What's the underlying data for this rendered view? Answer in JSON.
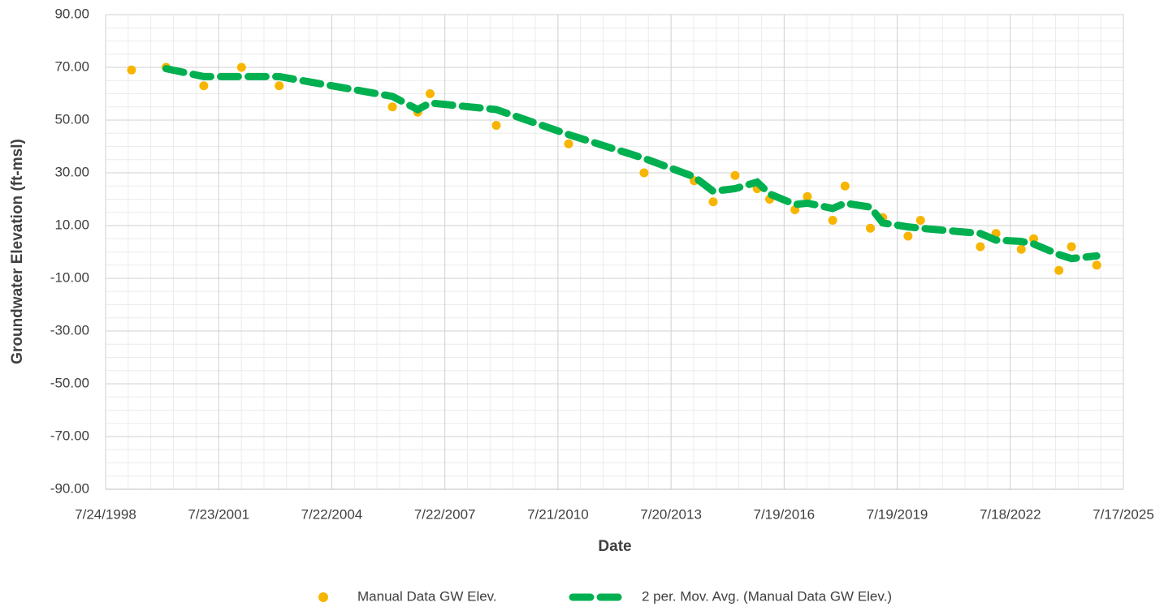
{
  "chart_data": {
    "type": "scatter",
    "xlabel": "Date",
    "ylabel": "Groundwater Elevation (ft-msl)",
    "xlim": [
      "1998-07-24",
      "2025-07-17"
    ],
    "xticks": [
      {
        "value": "1998-07-24",
        "label": "7/24/1998"
      },
      {
        "value": "2001-07-23",
        "label": "7/23/2001"
      },
      {
        "value": "2004-07-22",
        "label": "7/22/2004"
      },
      {
        "value": "2007-07-22",
        "label": "7/22/2007"
      },
      {
        "value": "2010-07-21",
        "label": "7/21/2010"
      },
      {
        "value": "2013-07-20",
        "label": "7/20/2013"
      },
      {
        "value": "2016-07-19",
        "label": "7/19/2016"
      },
      {
        "value": "2019-07-19",
        "label": "7/19/2019"
      },
      {
        "value": "2022-07-18",
        "label": "7/18/2022"
      },
      {
        "value": "2025-07-17",
        "label": "7/17/2025"
      }
    ],
    "ylim": [
      -90,
      90
    ],
    "yticks": [
      {
        "value": 90,
        "label": "90.00"
      },
      {
        "value": 70,
        "label": "70.00"
      },
      {
        "value": 50,
        "label": "50.00"
      },
      {
        "value": 30,
        "label": "30.00"
      },
      {
        "value": 10,
        "label": "10.00"
      },
      {
        "value": -10,
        "label": "-10.00"
      },
      {
        "value": -30,
        "label": "-30.00"
      },
      {
        "value": -50,
        "label": "-50.00"
      },
      {
        "value": -70,
        "label": "-70.00"
      },
      {
        "value": -90,
        "label": "-90.00"
      }
    ],
    "grid": true,
    "minor_grid": true,
    "legend": "bottom",
    "series": [
      {
        "name": "Manual Data GW Elev.",
        "color": "#f7b500",
        "mode": "markers",
        "x": [
          "1999-04",
          "2000-03",
          "2001-03",
          "2002-03",
          "2003-03",
          "2006-03",
          "2006-11",
          "2007-03",
          "2008-12",
          "2010-11",
          "2012-11",
          "2014-03",
          "2014-09",
          "2015-04",
          "2015-11",
          "2016-03",
          "2016-11",
          "2017-03",
          "2017-11",
          "2018-03",
          "2018-11",
          "2019-03",
          "2019-11",
          "2020-03",
          "2021-10",
          "2022-03",
          "2022-11",
          "2023-03",
          "2023-11",
          "2024-03",
          "2024-11"
        ],
        "values": [
          69,
          70,
          63,
          70,
          63,
          55,
          53,
          60,
          48,
          41,
          30,
          27,
          19,
          29,
          24,
          20,
          16,
          21,
          12,
          25,
          9,
          13,
          6,
          12,
          2,
          7,
          1,
          5,
          -7,
          2,
          -5
        ]
      },
      {
        "name": "2 per. Mov. Avg. (Manual Data GW Elev.)",
        "color": "#00b050",
        "mode": "dashed-line",
        "x": [
          "2000-03",
          "2001-03",
          "2002-03",
          "2003-03",
          "2006-03",
          "2006-11",
          "2007-03",
          "2008-12",
          "2010-11",
          "2012-11",
          "2014-03",
          "2014-09",
          "2015-04",
          "2015-11",
          "2016-03",
          "2016-11",
          "2017-03",
          "2017-11",
          "2018-03",
          "2018-11",
          "2019-03",
          "2019-11",
          "2020-03",
          "2021-10",
          "2022-03",
          "2022-11",
          "2023-03",
          "2023-11",
          "2024-03",
          "2024-11"
        ],
        "values": [
          69.5,
          66.5,
          66.5,
          66.5,
          59,
          54,
          56.5,
          54,
          44.5,
          35.5,
          28.5,
          23,
          24,
          26.5,
          22,
          18,
          18.5,
          16.5,
          18.5,
          17,
          11,
          9.5,
          9,
          7,
          4.5,
          4,
          3,
          -1,
          -2.5,
          -1.5
        ]
      }
    ]
  }
}
